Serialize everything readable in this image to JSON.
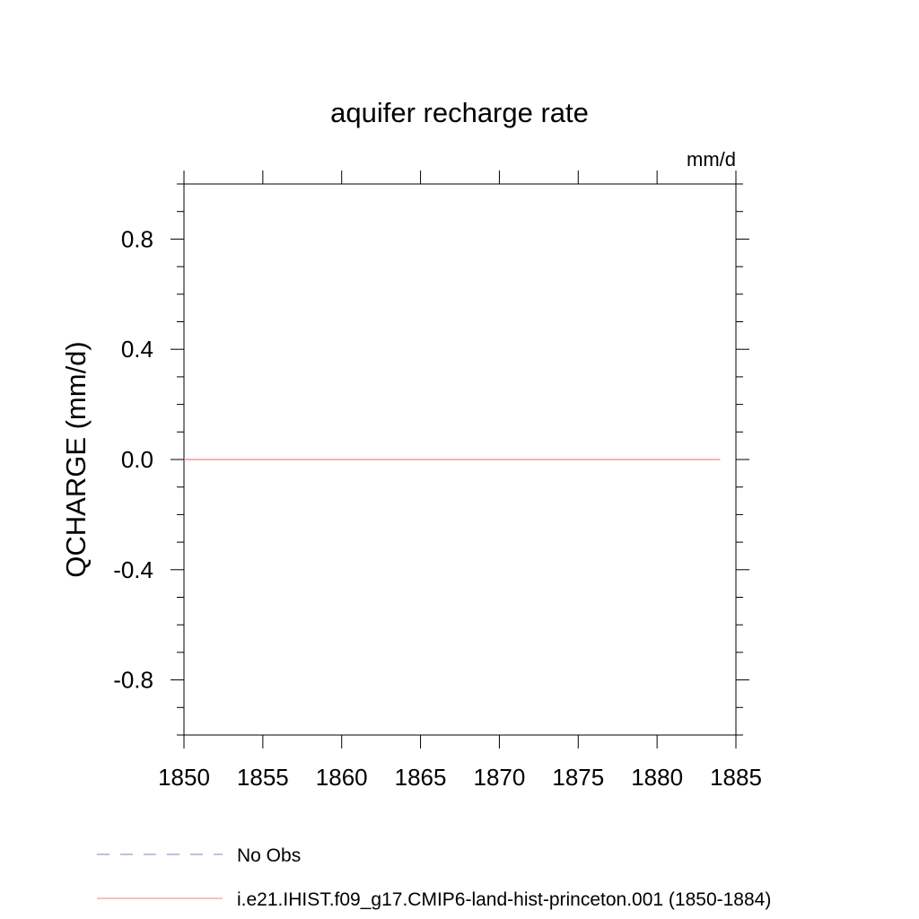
{
  "chart_data": {
    "type": "line",
    "title": "aquifer recharge rate",
    "units": "mm/d",
    "ylabel": "QCHARGE  (mm/d)",
    "xlabel": "",
    "xlim": [
      1850,
      1885
    ],
    "ylim": [
      -1.0,
      1.0
    ],
    "x_ticks": [
      1850,
      1855,
      1860,
      1865,
      1870,
      1875,
      1880,
      1885
    ],
    "x_tick_labels": [
      "1850",
      "1855",
      "1860",
      "1865",
      "1870",
      "1875",
      "1880",
      "1885"
    ],
    "y_ticks": [
      0.8,
      0.4,
      0.0,
      -0.4,
      -0.8
    ],
    "y_tick_labels": [
      "0.8",
      "0.4",
      "0.0",
      "-0.4",
      "-0.8"
    ],
    "grid": false,
    "legend_position": "bottom",
    "series": [
      {
        "name": "No Obs",
        "color": "#8080c0",
        "dash": "dashed",
        "x": [],
        "y": []
      },
      {
        "name": "i.e21.IHIST.f09_g17.CMIP6-land-hist-princeton.001 (1850-1884)",
        "color": "#f08080",
        "dash": "solid",
        "x": [
          1850,
          1884
        ],
        "y": [
          0.0,
          0.0
        ]
      }
    ]
  }
}
